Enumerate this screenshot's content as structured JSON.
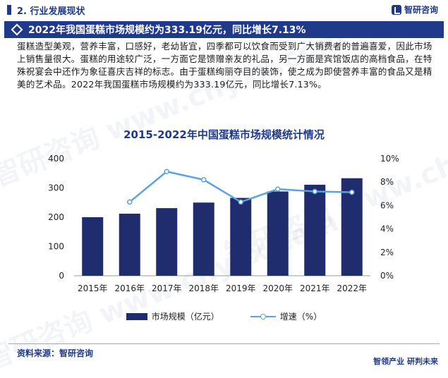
{
  "header": {
    "section": "2. 行业发展现状",
    "logo_text": "智研咨询",
    "headline": "2022年我国蛋糕市场规模约为333.19亿元，同比增长7.13%"
  },
  "body_text": "蛋糕造型美观，营养丰富，口感好，老幼皆宜，四季都可以饮食而受到广大销费者的普遍喜爱，因此市场上销售量很大。蛋糕的用途较广泛，一方面它是馈赠亲友的礼品，另一方面是宾馆饭店的高档食品，在特殊祝宴会中还作为象征喜庆吉祥的标志。由于蛋糕绚丽夺目的装饰，使之成为即使营养丰富的食品又是精美的艺术品。2022年我国蛋糕市场规模约为333.19亿元，同比增长7.13%。",
  "chart_data": {
    "type": "bar",
    "title": "2015-2022年中国蛋糕市场规模统计情况",
    "categories": [
      "2015年",
      "2016年",
      "2017年",
      "2018年",
      "2019年",
      "2020年",
      "2021年",
      "2022年"
    ],
    "series": [
      {
        "name": "市场规模（亿元）",
        "type": "bar",
        "axis": "left",
        "color": "#1f2d6e",
        "values": [
          200,
          212,
          231,
          250,
          266,
          288,
          311,
          333.19
        ]
      },
      {
        "name": "增速（%）",
        "type": "line",
        "axis": "right",
        "color": "#5ba3e0",
        "values": [
          null,
          6.3,
          8.9,
          8.2,
          6.3,
          7.4,
          7.2,
          7.13
        ]
      }
    ],
    "ylim": [
      0,
      400
    ],
    "yticks": [
      "0",
      "100",
      "200",
      "300",
      "400"
    ],
    "y2lim": [
      0,
      10
    ],
    "y2ticks": [
      "0%",
      "2%",
      "4%",
      "6%",
      "8%",
      "10%"
    ],
    "legend_position": "bottom",
    "grid": false
  },
  "footer": {
    "source": "资料来源：智研咨询",
    "slogan": "智领产业  研判未来"
  },
  "watermark": "智研咨询 www.chyxx.com"
}
